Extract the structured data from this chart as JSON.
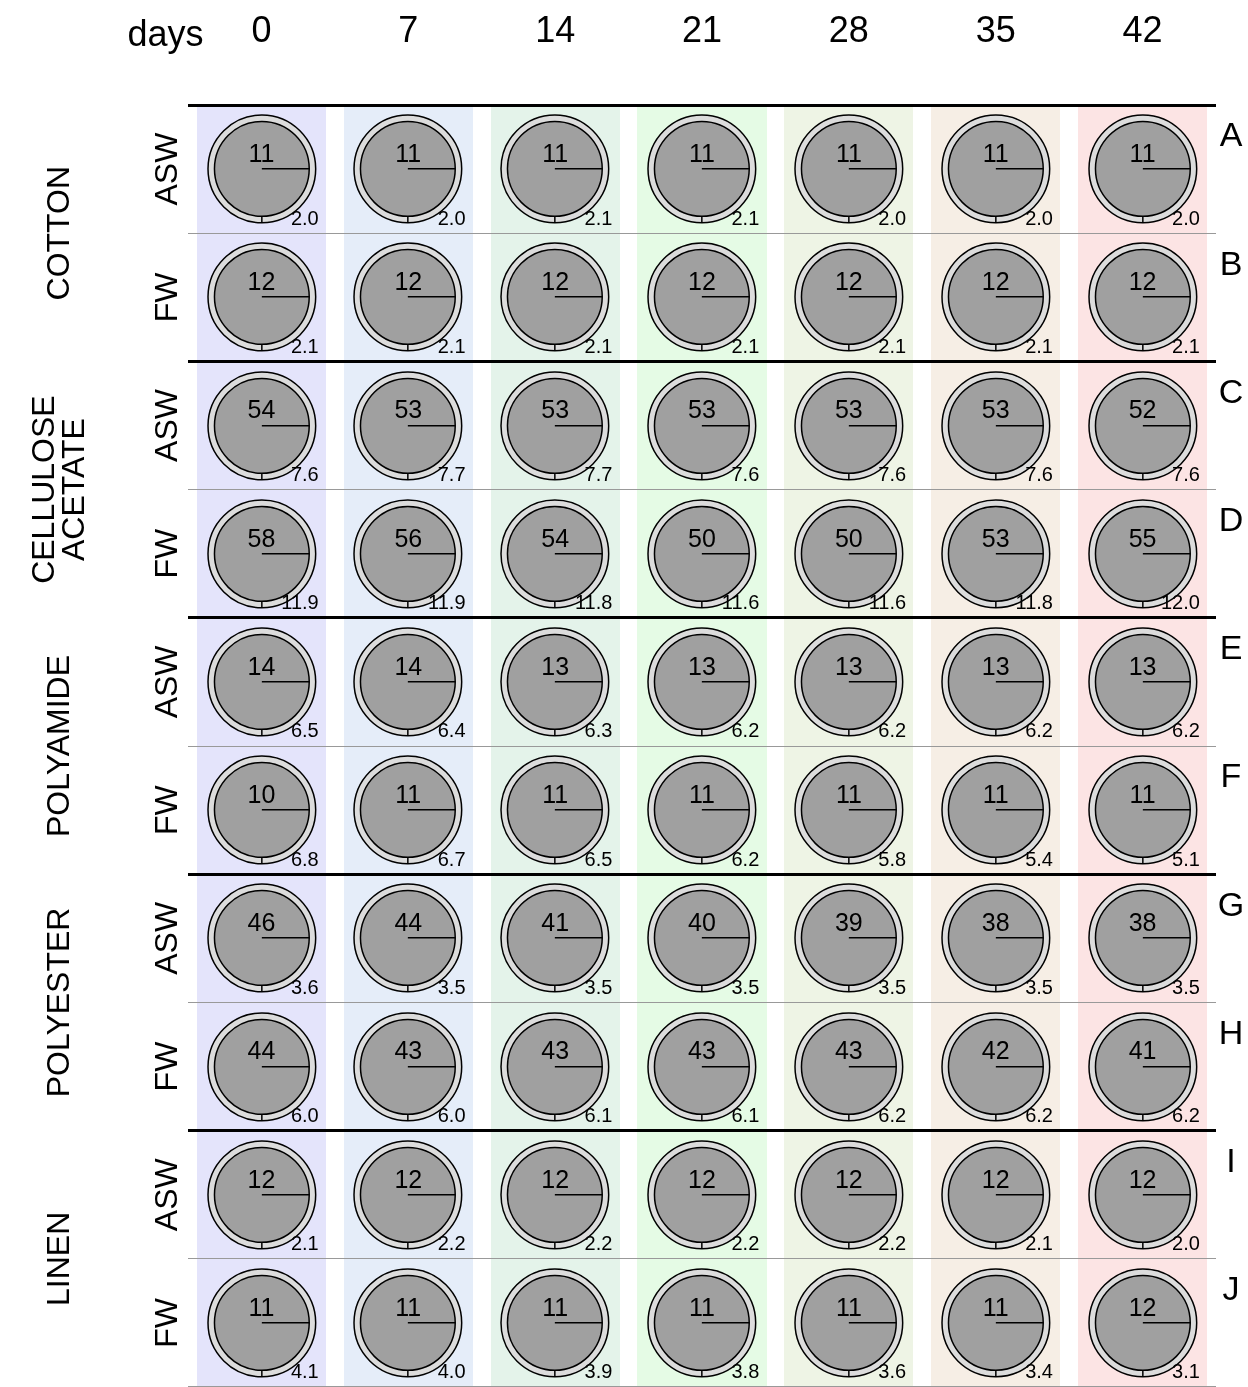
{
  "chart_data": {
    "type": "heatmap",
    "xlabel": "days",
    "categories": [
      "0",
      "7",
      "14",
      "21",
      "28",
      "35",
      "42"
    ],
    "y_categories": [
      "ASW",
      "FW",
      "ASW",
      "FW",
      "ASW",
      "FW",
      "ASW",
      "FW",
      "ASW",
      "FW"
    ],
    "y2_categories": [
      "A",
      "B",
      "C",
      "D",
      "E",
      "F",
      "G",
      "H",
      "I",
      "J"
    ],
    "cells": [
      [
        11,
        11,
        11,
        11,
        11,
        11,
        11
      ],
      [
        12,
        12,
        12,
        12,
        12,
        12,
        12
      ],
      [
        54,
        53,
        53,
        53,
        53,
        53,
        52
      ],
      [
        58,
        56,
        54,
        50,
        50,
        53,
        55
      ],
      [
        14,
        14,
        13,
        13,
        13,
        13,
        13
      ],
      [
        10,
        11,
        11,
        11,
        11,
        11,
        11
      ],
      [
        46,
        44,
        41,
        40,
        39,
        38,
        38
      ],
      [
        44,
        43,
        43,
        43,
        43,
        42,
        41
      ],
      [
        12,
        12,
        12,
        12,
        12,
        12,
        12
      ],
      [
        11,
        11,
        11,
        11,
        11,
        11,
        12
      ]
    ],
    "grid": "y",
    "data_labels": true,
    "annotations": [
      "COTTON",
      "CELLULOSE ACETATE",
      "POLYAMIDE",
      "POLYESTER",
      "LINEN",
      "2.0",
      "2.0",
      "2.1",
      "2.1",
      "2.0",
      "2.0",
      "2.0",
      "2.1",
      "2.1",
      "2.1",
      "2.1",
      "2.1",
      "2.1",
      "2.1",
      "7.6",
      "7.7",
      "7.7",
      "7.6",
      "7.6",
      "7.6",
      "7.6",
      "11.9",
      "11.9",
      "11.8",
      "11.6",
      "11.6",
      "11.8",
      "12.0",
      "6.5",
      "6.4",
      "6.3",
      "6.2",
      "6.2",
      "6.2",
      "6.2",
      "6.8",
      "6.7",
      "6.5",
      "6.2",
      "5.8",
      "5.4",
      "5.1",
      "3.6",
      "3.5",
      "3.5",
      "3.5",
      "3.5",
      "3.5",
      "3.5",
      "6.0",
      "6.0",
      "6.1",
      "6.1",
      "6.2",
      "6.2",
      "6.2",
      "2.1",
      "2.2",
      "2.2",
      "2.2",
      "2.2",
      "2.1",
      "2.0",
      "4.1",
      "4.0",
      "3.9",
      "3.8",
      "3.6",
      "3.4",
      "3.1"
    ]
  }
}
